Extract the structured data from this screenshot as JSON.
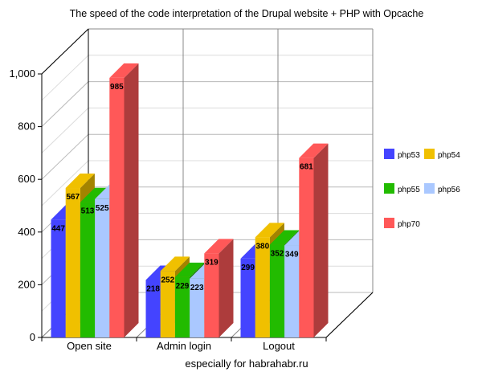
{
  "chart_data": {
    "type": "bar",
    "title": "The speed of the code interpretation of the Drupal website + PHP with Opcache",
    "xlabel": "especially for habrahabr.ru",
    "ylabel": "",
    "ylim": [
      0,
      1000
    ],
    "yticks": [
      "0",
      "200",
      "400",
      "600",
      "800",
      "1,000"
    ],
    "categories": [
      "Open site",
      "Admin login",
      "Logout"
    ],
    "series": [
      {
        "name": "php53",
        "values": [
          447,
          218,
          299
        ],
        "color": "#4444ff"
      },
      {
        "name": "php54",
        "values": [
          567,
          252,
          380
        ],
        "color": "#f0c000"
      },
      {
        "name": "php55",
        "values": [
          513,
          229,
          352
        ],
        "color": "#22bb00"
      },
      {
        "name": "php56",
        "values": [
          525,
          223,
          349
        ],
        "color": "#aac8ff"
      },
      {
        "name": "php70",
        "values": [
          985,
          319,
          681
        ],
        "color": "#ff5858"
      }
    ],
    "grid": true,
    "legend": "right"
  }
}
